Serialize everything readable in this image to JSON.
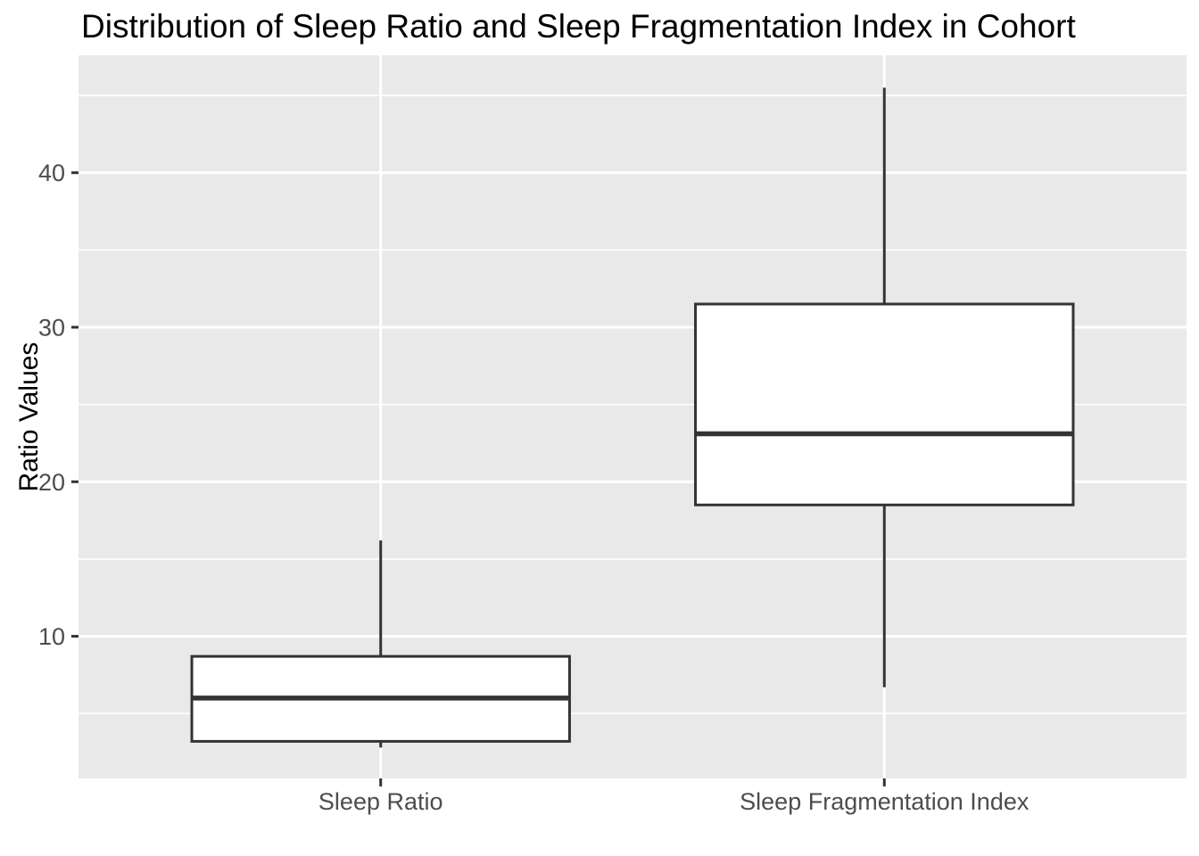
{
  "chart_data": {
    "type": "boxplot",
    "title": "Distribution of Sleep Ratio and Sleep Fragmentation Index in Cohort",
    "xlabel": "",
    "ylabel": "Ratio Values",
    "categories": [
      "Sleep Ratio",
      "Sleep Fragmentation Index"
    ],
    "series": [
      {
        "name": "Sleep Ratio",
        "min": 2.8,
        "q1": 3.2,
        "median": 6.0,
        "q3": 8.7,
        "max": 16.2,
        "outliers": []
      },
      {
        "name": "Sleep Fragmentation Index",
        "min": 6.7,
        "q1": 18.5,
        "median": 23.1,
        "q3": 31.5,
        "max": 45.5,
        "outliers": []
      }
    ],
    "y_major_ticks": [
      10,
      20,
      30,
      40
    ],
    "y_minor_ticks": [
      5,
      15,
      25,
      35,
      45
    ],
    "ylim": [
      0.8,
      47.6
    ],
    "grid": true,
    "legend": false,
    "colors": {
      "panel_background": "#E9E9E9",
      "gridline": "#FFFFFF",
      "box_fill": "#FFFFFF",
      "box_stroke": "#333333",
      "tick_text": "#4D4D4D",
      "title_text": "#000000",
      "axis_tick_mark": "#333333"
    }
  }
}
